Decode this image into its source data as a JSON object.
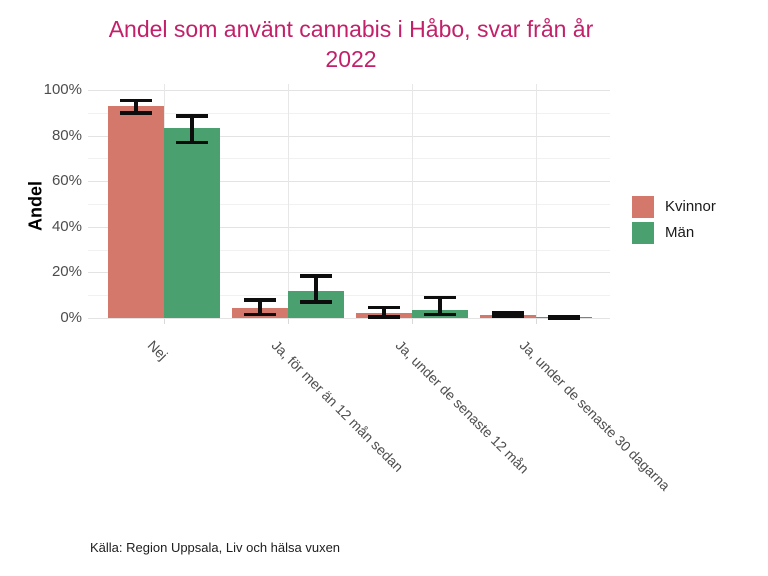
{
  "chart_data": {
    "type": "bar",
    "title": "Andel som använt cannabis i Håbo, svar från år 2022",
    "title_lines": [
      "Andel som använt cannabis i Håbo, svar från år",
      "2022"
    ],
    "title_color": "#c22069",
    "ylabel": "Andel",
    "caption": "Källa: Region Uppsala, Liv och hälsa vuxen",
    "categories": [
      "Nej",
      "Ja, för mer än 12 mån sedan",
      "Ja, under de senaste 12 mån",
      "Ja, under de senaste 30 dagarna"
    ],
    "series": [
      {
        "name": "Kvinnor",
        "color": "#d5786c",
        "values": [
          93,
          4.5,
          2,
          1.5
        ],
        "ci_low": [
          90,
          1.5,
          0.5,
          0.8
        ],
        "ci_high": [
          95.5,
          8,
          4.5,
          2.3
        ]
      },
      {
        "name": "Män",
        "color": "#4aa06e",
        "values": [
          83.5,
          12,
          3.5,
          0.3
        ],
        "ci_low": [
          77,
          7,
          1.5,
          0.1
        ],
        "ci_high": [
          88.5,
          18.5,
          9,
          0.6
        ]
      }
    ],
    "y_ticks": [
      {
        "label": "0%",
        "value": 0
      },
      {
        "label": "20%",
        "value": 20
      },
      {
        "label": "40%",
        "value": 40
      },
      {
        "label": "60%",
        "value": 60
      },
      {
        "label": "80%",
        "value": 80
      },
      {
        "label": "100%",
        "value": 100
      }
    ],
    "y_minor_ticks": [
      10,
      30,
      50,
      70,
      90
    ],
    "ylim": [
      0,
      100
    ],
    "grid": "on",
    "legend_position": "right",
    "error_bars": true
  }
}
